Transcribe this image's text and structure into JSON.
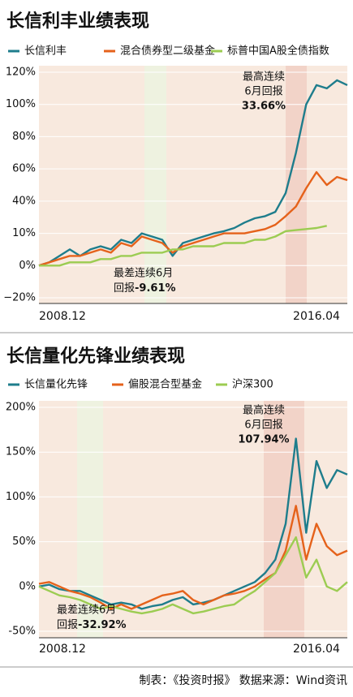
{
  "chart_data": [
    {
      "type": "line",
      "title": "长信利丰业绩表现",
      "categories": [
        "2008.12",
        null,
        null,
        null,
        null,
        null,
        null,
        null,
        null,
        null,
        null,
        null,
        null,
        null,
        null,
        null,
        null,
        null,
        null,
        null,
        null,
        null,
        null,
        null,
        null,
        null,
        null,
        "2016.04",
        null,
        null,
        null
      ],
      "series": [
        {
          "name": "长信利丰",
          "color": "#1e7d8c",
          "values": [
            0,
            1,
            3,
            5,
            3,
            5,
            6,
            5,
            8,
            7,
            10,
            9,
            8,
            3,
            7,
            8,
            9,
            10,
            12,
            15,
            20,
            24,
            26,
            30,
            45,
            70,
            100,
            112,
            110,
            115,
            112
          ]
        },
        {
          "name": "混合债券型二级基金",
          "color": "#e5621b",
          "values": [
            0,
            1,
            2,
            3,
            3,
            4,
            5,
            4,
            7,
            6,
            9,
            8,
            7,
            4,
            6,
            7,
            8,
            9,
            10,
            10,
            10,
            12,
            14,
            18,
            26,
            35,
            48,
            58,
            50,
            55,
            53
          ]
        },
        {
          "name": "标普中国A股全债指数",
          "color": "#9ccc52",
          "values": [
            0,
            0,
            0,
            1,
            1,
            1,
            2,
            2,
            3,
            3,
            4,
            4,
            4,
            5,
            5,
            6,
            6,
            6,
            7,
            7,
            7,
            8,
            8,
            9,
            12,
            13,
            14,
            15,
            17,
            null,
            null
          ]
        }
      ],
      "ylim": [
        -20,
        120
      ],
      "yticks": [
        {
          "value": -20,
          "label": "−20%"
        },
        {
          "value": 0,
          "label": "0%"
        },
        {
          "value": 10,
          "label": "10%"
        },
        {
          "value": 40,
          "label": "40%"
        },
        {
          "value": 60,
          "label": "60%"
        },
        {
          "value": 80,
          "label": "80%"
        },
        {
          "value": 100,
          "label": "100%"
        },
        {
          "value": 120,
          "label": "120%"
        }
      ],
      "annotations": {
        "best": [
          "最高连续",
          "6月回报",
          "33.66%"
        ],
        "worst": [
          "最差连续6月",
          "回报",
          "-9.61%"
        ]
      }
    },
    {
      "type": "line",
      "title": "长信量化先锋业绩表现",
      "categories": [
        "2008.12",
        null,
        null,
        null,
        null,
        null,
        null,
        null,
        null,
        null,
        null,
        null,
        null,
        null,
        null,
        null,
        null,
        null,
        null,
        null,
        null,
        null,
        null,
        null,
        null,
        null,
        null,
        "2016.04",
        null,
        null,
        null
      ],
      "series": [
        {
          "name": "长信量化先锋",
          "color": "#1e7d8c",
          "values": [
            0,
            2,
            -3,
            -5,
            -5,
            -10,
            -15,
            -20,
            -18,
            -20,
            -25,
            -22,
            -20,
            -15,
            -12,
            -20,
            -18,
            -15,
            -10,
            -5,
            0,
            5,
            15,
            30,
            70,
            165,
            60,
            140,
            110,
            130,
            125
          ]
        },
        {
          "name": "偏股混合型基金",
          "color": "#e5621b",
          "values": [
            3,
            5,
            0,
            -5,
            -8,
            -12,
            -18,
            -25,
            -20,
            -25,
            -20,
            -15,
            -10,
            -8,
            -5,
            -15,
            -20,
            -15,
            -10,
            -8,
            -5,
            0,
            8,
            15,
            40,
            90,
            30,
            70,
            45,
            35,
            40
          ]
        },
        {
          "name": "沪深300",
          "color": "#9ccc52",
          "values": [
            0,
            -5,
            -10,
            -12,
            -15,
            -20,
            -25,
            -22,
            -25,
            -28,
            -30,
            -28,
            -25,
            -20,
            -25,
            -30,
            -28,
            -25,
            -22,
            -20,
            -12,
            -5,
            5,
            15,
            35,
            55,
            10,
            30,
            0,
            -5,
            5
          ]
        }
      ],
      "ylim": [
        -50,
        200
      ],
      "yticks": [
        {
          "value": -50,
          "label": "-50%"
        },
        {
          "value": 0,
          "label": "0%"
        },
        {
          "value": 50,
          "label": "50%"
        },
        {
          "value": 100,
          "label": "100%"
        },
        {
          "value": 150,
          "label": "150%"
        },
        {
          "value": 200,
          "label": "200%"
        }
      ],
      "annotations": {
        "best": [
          "最高连续",
          "6月回报",
          "107.94%"
        ],
        "worst": [
          "最差连续6月",
          "回报",
          "-32.92%"
        ]
      }
    }
  ],
  "footer": "制表：《投资时报》 数据来源：Wind资讯"
}
